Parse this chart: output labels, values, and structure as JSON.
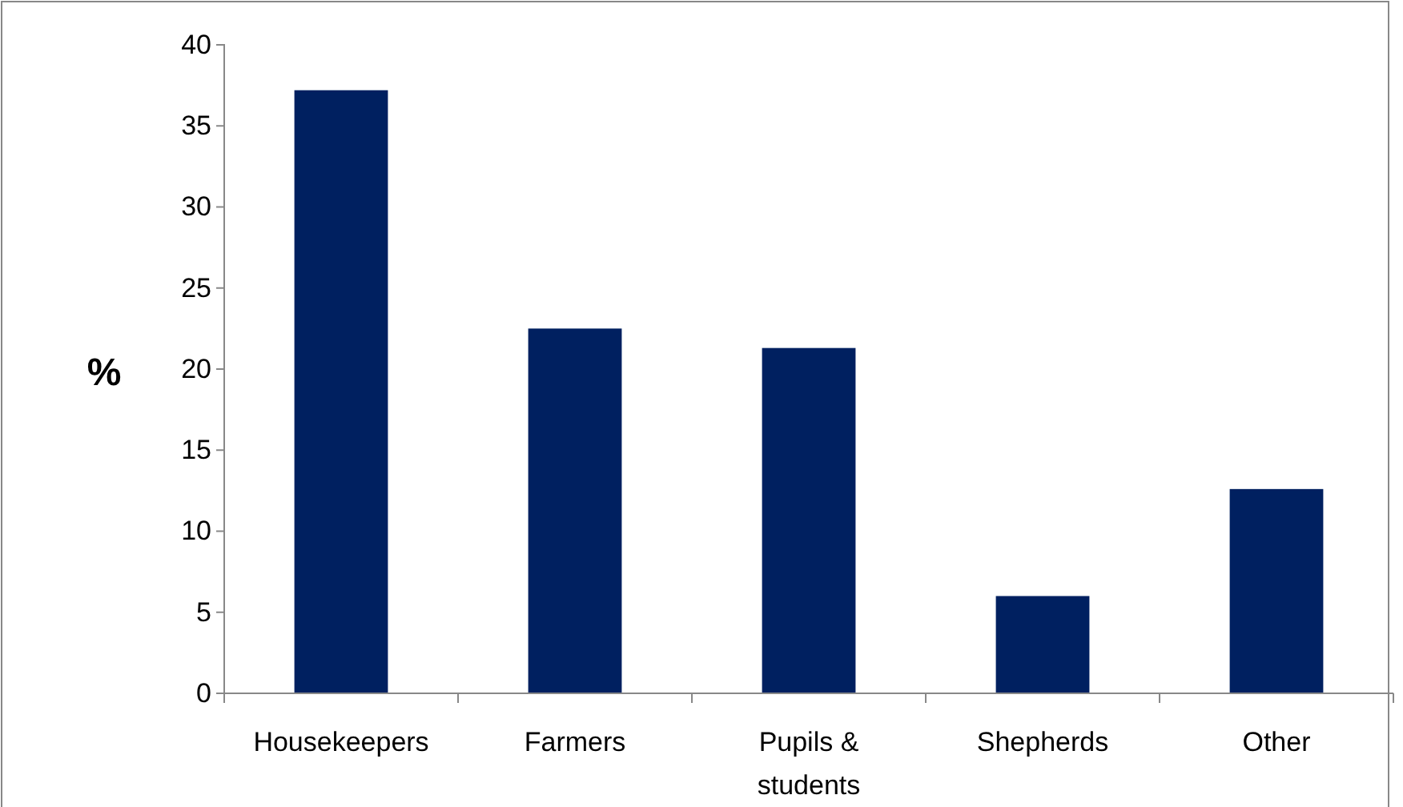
{
  "chart_data": {
    "type": "bar",
    "ylabel": "%",
    "categories": [
      "Housekeepers",
      "Farmers",
      "Pupils & students",
      "Shepherds",
      "Other"
    ],
    "values": [
      37.2,
      22.5,
      21.3,
      6.0,
      12.6
    ],
    "color": "#002060",
    "ylim": [
      0,
      40
    ],
    "yticks": [
      0,
      5,
      10,
      15,
      20,
      25,
      30,
      35,
      40
    ],
    "grid": false
  }
}
